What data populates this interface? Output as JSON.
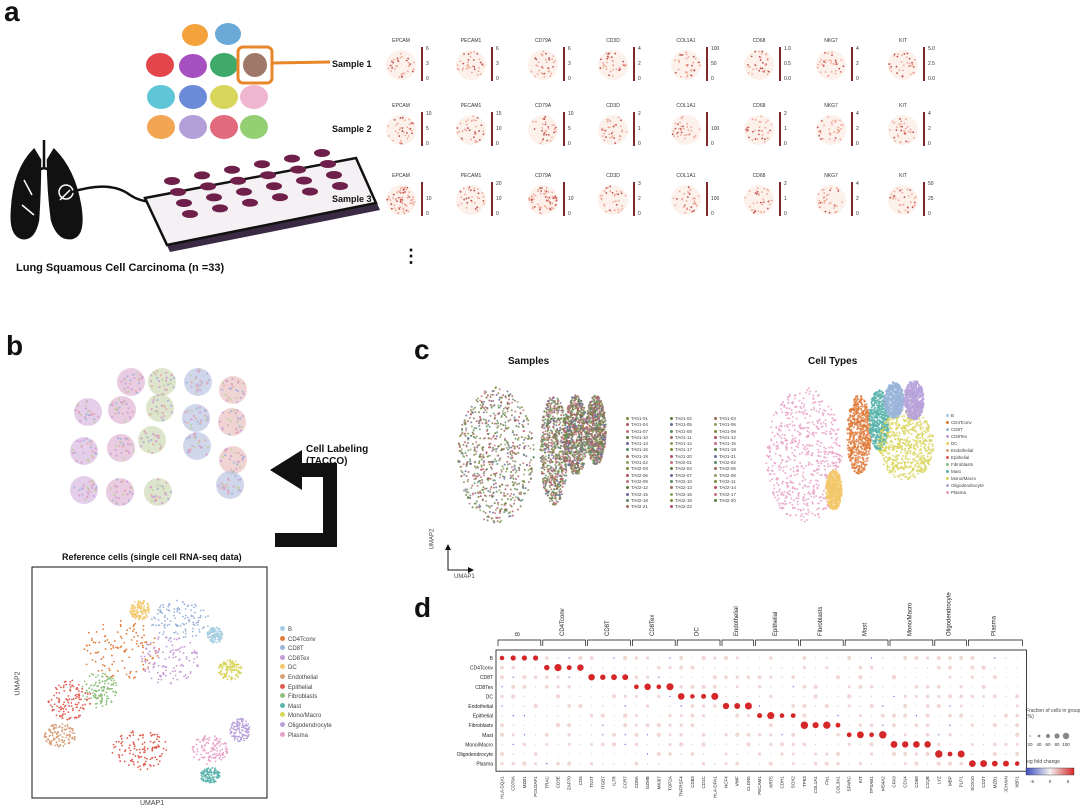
{
  "panels": {
    "a": "a",
    "b": "b",
    "c": "c",
    "d": "d"
  },
  "panel_a": {
    "cohort_label": "Lung Squamous Cell Carcinoma (n =33)",
    "ellipsis": "⋮",
    "sample_labels": [
      "Sample 1",
      "Sample 2",
      "Sample 3"
    ],
    "genes": [
      "EPCAM",
      "PECAM1",
      "CD79A",
      "CD3D",
      "COL1A1",
      "CD68",
      "NKG7",
      "KIT"
    ],
    "sample_rows": [
      {
        "scale_max": [
          "6",
          "6",
          "6",
          "4",
          "100",
          "1.0",
          "4",
          "5.0"
        ],
        "scale_mid": [
          "3",
          "3",
          "3",
          "2",
          "50",
          "0.5",
          "2",
          "2.5"
        ],
        "scale_min": [
          "0",
          "0",
          "0",
          "0",
          "0",
          "0.0",
          "0",
          "0.0"
        ]
      },
      {
        "scale_max": [
          "10",
          "15",
          "10",
          "2",
          "",
          "2",
          "4",
          "4"
        ],
        "scale_mid": [
          "5",
          "10",
          "5",
          "1",
          "100",
          "1",
          "2",
          "2"
        ],
        "scale_min": [
          "0",
          "0",
          "0",
          "0",
          "0",
          "0",
          "0",
          "0"
        ]
      },
      {
        "scale_max": [
          "",
          "20",
          "",
          "3",
          "",
          "2",
          "4",
          "50"
        ],
        "scale_mid": [
          "10",
          "10",
          "10",
          "2",
          "100",
          "1",
          "2",
          "25"
        ],
        "scale_min": [
          "0",
          "0",
          "0",
          "0",
          "0",
          "0",
          "0",
          "0"
        ]
      }
    ]
  },
  "panel_b": {
    "arrow_label_line1": "Cell Labeling",
    "arrow_label_line2": "(TACCO)",
    "reference_title": "Reference cells (single cell RNA-seq data)",
    "xlabel": "UMAP1",
    "ylabel": "UMAP2",
    "legend": [
      "B",
      "CD4Tconv",
      "CD8T",
      "CD8Tex",
      "DC",
      "Endothelial",
      "Epithelial",
      "Fibroblasts",
      "Mast",
      "Mono/Macro",
      "Oligodendrocyte",
      "Plasma"
    ]
  },
  "panel_c": {
    "samples_title": "Samples",
    "celltypes_title": "Cell Types",
    "xlabel": "UMAP1",
    "ylabel": "UMAP2",
    "sample_legend": [
      "TA01-01",
      "TA01-02",
      "TA01-03",
      "TA01-04",
      "TA01-05",
      "TA01-06",
      "TA01-07",
      "TA01-08",
      "TA01-09",
      "TA01-10",
      "TA01-11",
      "TA01-12",
      "TA01-13",
      "TA01-14",
      "TA01-15",
      "TA01-16",
      "TA01-17",
      "TA01-18",
      "TA01-19",
      "TA01-20",
      "TA01-21",
      "TA01-22",
      "TA02-01",
      "TA02-02",
      "TA02-03",
      "TA02-04",
      "TA02-05",
      "TA02-06",
      "TA02-07",
      "TA02-08",
      "TA02-09",
      "TA02-10",
      "TA02-11",
      "TA02-12",
      "TA02-13",
      "TA02-14",
      "TA02-15",
      "TA02-16",
      "TA02-17",
      "TA02-18",
      "TA02-19",
      "TA02-20",
      "TA02-21",
      "TA02-22"
    ],
    "celltype_legend": [
      "B",
      "CD4Tconv",
      "CD8T",
      "CD8Tex",
      "DC",
      "Endothelial",
      "Epithelial",
      "Fibroblasts",
      "Mast",
      "Mono/Macro",
      "Oligodendrocyte",
      "Plasma"
    ]
  },
  "panel_d": {
    "groups": [
      "B",
      "CD4Tconv",
      "CD8T",
      "CD8Tex",
      "DC",
      "Endothelial",
      "Epithelial",
      "Fibroblasts",
      "Mast",
      "Mono/Macro",
      "Oligodendrocyte",
      "Plasma"
    ],
    "rows": [
      "B",
      "CD4Tconv",
      "CD8T",
      "CD8Tex",
      "DC",
      "Endothelial",
      "Epithelial",
      "Fibroblasts",
      "Mast",
      "Mono/Macro",
      "Oligodendrocyte",
      "Plasma"
    ],
    "genes": [
      "HLA-DQA1",
      "CD79A",
      "MZB1",
      "POU2AF1",
      "TRAC",
      "CD3E",
      "ZAP70",
      "CD5",
      "TIGIT",
      "ITGB7",
      "IL7R",
      "CCR7",
      "CD8A",
      "GZMB",
      "MKI67",
      "TOP2A",
      "TNFRSF4",
      "CD83",
      "CD1C",
      "HLA-DPA1",
      "NCF4",
      "VWF",
      "CLDN5",
      "PECAM1",
      "KRT5",
      "CDH1",
      "SOX2",
      "TP63",
      "COL1A1",
      "FN1",
      "COL3A1",
      "SPARC",
      "KIT",
      "TPSAB1",
      "MS4A2",
      "CPA3",
      "CD14",
      "CD68",
      "C1QB",
      "LYZ",
      "MBP",
      "PLP1",
      "SOX10",
      "CD27",
      "MZB1",
      "JCHAIN",
      "XBP1"
    ],
    "size_legend_title": "Fraction of cells in group (%)",
    "size_ticks": [
      "20",
      "40",
      "60",
      "80",
      "100"
    ],
    "color_legend_title": "log fold change",
    "color_ticks": [
      "-5",
      "0",
      "5"
    ]
  },
  "colors": {
    "accent_orange": "#e8862a",
    "expr_high": "#8b1a1a",
    "expr_low": "#fbe6de",
    "dot_red": "#d62728",
    "dot_blue": "#3b4cc0"
  },
  "chart_data": {
    "type": "scatter",
    "title": "",
    "xlabel": "UMAP1",
    "ylabel": "UMAP2",
    "series": [
      {
        "name": "B",
        "color": "#a6cee3"
      },
      {
        "name": "CD4Tconv",
        "color": "#e07b39"
      },
      {
        "name": "CD8T",
        "color": "#9ab4d9"
      },
      {
        "name": "CD8Tex",
        "color": "#c49bd6"
      },
      {
        "name": "DC",
        "color": "#f2c86a"
      },
      {
        "name": "Endothelial",
        "color": "#d8a07a"
      },
      {
        "name": "Epithelial",
        "color": "#e25b4f"
      },
      {
        "name": "Fibroblasts",
        "color": "#8ec07c"
      },
      {
        "name": "Mast",
        "color": "#5ab4ac"
      },
      {
        "name": "Mono/Macro",
        "color": "#d9d55b"
      },
      {
        "name": "Oligodendrocyte",
        "color": "#b8a1d9"
      },
      {
        "name": "Plasma",
        "color": "#e7a0c6"
      }
    ]
  }
}
